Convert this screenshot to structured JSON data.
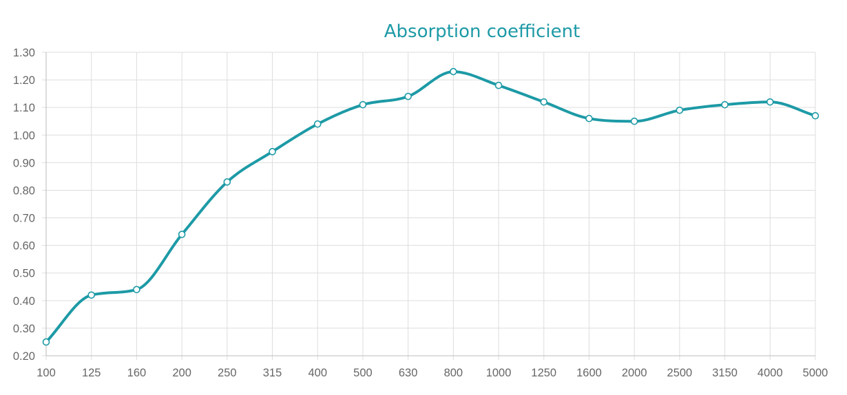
{
  "chart_data": {
    "type": "line",
    "title": "Absorption coefficient",
    "xlabel": "",
    "ylabel": "",
    "categories": [
      "100",
      "125",
      "160",
      "200",
      "250",
      "315",
      "400",
      "500",
      "630",
      "800",
      "1000",
      "1250",
      "1600",
      "2000",
      "2500",
      "3150",
      "4000",
      "5000"
    ],
    "series": [
      {
        "values": [
          0.25,
          0.42,
          0.44,
          0.64,
          0.83,
          0.94,
          1.04,
          1.11,
          1.14,
          1.23,
          1.18,
          1.12,
          1.06,
          1.05,
          1.09,
          1.11,
          1.12,
          1.07
        ]
      }
    ],
    "ylim": [
      0.2,
      1.3
    ],
    "yticks": [
      "0.20",
      "0.30",
      "0.40",
      "0.50",
      "0.60",
      "0.70",
      "0.80",
      "0.90",
      "1.00",
      "1.10",
      "1.20",
      "1.30"
    ],
    "grid": true,
    "legend": "none",
    "colors": {
      "series": "#1d9aa6",
      "title": "#1d9aa6",
      "grid": "#dddddd",
      "tick_text": "#666666"
    }
  }
}
